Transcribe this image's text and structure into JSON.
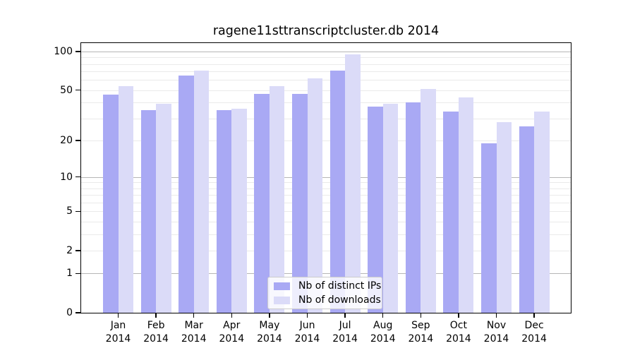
{
  "title": "ragene11sttranscriptcluster.db 2014",
  "colors": {
    "distinct_ips_bar": "#a9a9f4",
    "downloads_bar": "#dbdbf8",
    "grid_major": "#b6b6b6",
    "grid_minor": "#eaeaea",
    "axis": "#000000",
    "legend_border": "#cccccc"
  },
  "legend": {
    "items": [
      {
        "label": "Nb of distinct IPs"
      },
      {
        "label": "Nb of downloads"
      }
    ]
  },
  "chart_data": {
    "type": "bar",
    "title": "ragene11sttranscriptcluster.db 2014",
    "categories": [
      "Jan",
      "Feb",
      "Mar",
      "Apr",
      "May",
      "Jun",
      "Jul",
      "Aug",
      "Sep",
      "Oct",
      "Nov",
      "Dec"
    ],
    "category_sublabel": "2014",
    "series": [
      {
        "name": "Nb of distinct IPs",
        "color": "#a9a9f4",
        "values": [
          46,
          35,
          65,
          35,
          47,
          47,
          71,
          37,
          40,
          34,
          19,
          26
        ]
      },
      {
        "name": "Nb of downloads",
        "color": "#dbdbf8",
        "values": [
          54,
          39,
          71,
          36,
          54,
          62,
          95,
          39,
          51,
          44,
          28,
          34
        ]
      }
    ],
    "xlabel": "",
    "ylabel": "",
    "yscale": "log1p",
    "ylim": [
      0,
      117
    ],
    "y_ticks": [
      0,
      1,
      2,
      5,
      10,
      20,
      50,
      100
    ],
    "grid_major_at": [
      1,
      10,
      100
    ],
    "grid_minor_at": [
      2,
      3,
      4,
      5,
      6,
      7,
      8,
      9,
      20,
      30,
      40,
      50,
      60,
      70,
      80,
      90
    ],
    "grid": "on",
    "legend_position": "lower center"
  }
}
